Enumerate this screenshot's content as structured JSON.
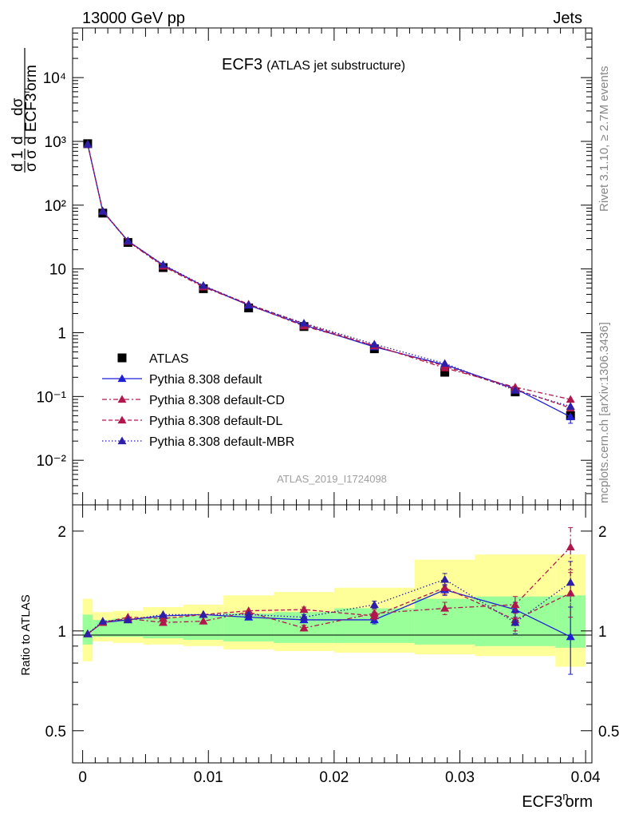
{
  "header": {
    "left": "13000 GeV pp",
    "right": "Jets"
  },
  "title": {
    "main": "ECF3",
    "sub": "(ATLAS jet substructure)"
  },
  "side_labels": {
    "rivet": "Rivet 3.1.10, ≥ 2.7M events",
    "mcplots": "mcplots.cern.ch [arXiv:1306.3436]"
  },
  "watermark": "ATLAS_2019_I1724098",
  "ratio_ylabel": "Ratio to ATLAS",
  "xlabel": "ECF3ⁿorm",
  "chart_data": [
    {
      "type": "line",
      "panel": "main",
      "ylabel": "1/σ dσ/d ECF3ⁿorm",
      "yscale": "log",
      "ylim": [
        0.002,
        60000
      ],
      "xlim": [
        -0.0008,
        0.0405
      ],
      "y_tick_labels": [
        "10⁻²",
        "10⁻¹",
        "1",
        "10",
        "10²",
        "10³",
        "10⁴"
      ],
      "y_tick_values": [
        0.01,
        0.1,
        1,
        10,
        100,
        1000,
        10000
      ],
      "x": [
        0.0004,
        0.0016,
        0.0036,
        0.0064,
        0.0096,
        0.0132,
        0.0176,
        0.0232,
        0.0288,
        0.0344,
        0.0388
      ],
      "series": [
        {
          "name": "ATLAS",
          "color": "#000000",
          "marker": "square",
          "dash": "",
          "y": [
            920,
            75,
            26,
            10.5,
            4.9,
            2.45,
            1.25,
            0.56,
            0.24,
            0.118,
            0.05
          ],
          "err": [
            0,
            0,
            0,
            0,
            0,
            0,
            0,
            0,
            0,
            0.01,
            0.012
          ]
        },
        {
          "name": "Pythia 8.308 default",
          "color": "#1f1fd6",
          "marker": "triangle",
          "dash": "",
          "y": [
            900,
            80,
            27.5,
            11.5,
            5.4,
            2.7,
            1.32,
            0.6,
            0.315,
            0.133,
            0.048
          ],
          "err": [
            0,
            0,
            0,
            0,
            0,
            0,
            0,
            0,
            0,
            0,
            0
          ]
        },
        {
          "name": "Pythia 8.308 default-CD",
          "color": "#b0174d",
          "marker": "triangle",
          "dash": "6 3 2 3",
          "y": [
            900,
            80,
            27,
            11,
            5.2,
            2.75,
            1.27,
            0.63,
            0.28,
            0.14,
            0.09
          ],
          "err": [
            0,
            0,
            0,
            0,
            0,
            0,
            0,
            0,
            0,
            0,
            0
          ]
        },
        {
          "name": "Pythia 8.308 default-DL",
          "color": "#b0174d",
          "marker": "triangle",
          "dash": "5 3",
          "y": [
            900,
            81,
            27.5,
            11.3,
            5.4,
            2.8,
            1.38,
            0.62,
            0.3,
            0.13,
            0.066
          ],
          "err": [
            0,
            0,
            0,
            0,
            0,
            0,
            0,
            0,
            0,
            0,
            0
          ]
        },
        {
          "name": "Pythia 8.308 default-MBR",
          "color": "#2d1fa8",
          "marker": "triangle",
          "dash": "1.5 2.5",
          "y": [
            900,
            80,
            27.5,
            11.7,
            5.5,
            2.75,
            1.41,
            0.66,
            0.33,
            0.125,
            0.07
          ],
          "err": [
            0,
            0,
            0,
            0,
            0,
            0,
            0,
            0,
            0,
            0,
            0
          ]
        }
      ]
    },
    {
      "type": "line",
      "panel": "ratio",
      "ylabel": "Ratio to ATLAS",
      "xlabel": "ECF3ⁿorm",
      "yscale": "log",
      "ylim": [
        0.4,
        2.4
      ],
      "xlim": [
        -0.0008,
        0.0405
      ],
      "y_tick_labels": [
        "0.5",
        "1",
        "2"
      ],
      "y_tick_values": [
        0.5,
        1,
        2
      ],
      "x_tick_labels": [
        "0",
        "0.01",
        "0.02",
        "0.03",
        "0.04"
      ],
      "x_tick_values": [
        0,
        0.01,
        0.02,
        0.03,
        0.04
      ],
      "bin_edges": [
        0,
        0.0008,
        0.0024,
        0.0048,
        0.008,
        0.0112,
        0.0152,
        0.02,
        0.0264,
        0.0312,
        0.0376,
        0.04
      ],
      "band_yellow": [
        [
          0.81,
          1.25
        ],
        [
          0.93,
          1.14
        ],
        [
          0.92,
          1.15
        ],
        [
          0.91,
          1.18
        ],
        [
          0.9,
          1.2
        ],
        [
          0.88,
          1.28
        ],
        [
          0.87,
          1.31
        ],
        [
          0.86,
          1.35
        ],
        [
          0.85,
          1.64
        ],
        [
          0.84,
          1.7
        ],
        [
          0.78,
          1.7
        ]
      ],
      "band_green": [
        [
          0.91,
          1.12
        ],
        [
          0.96,
          1.08
        ],
        [
          0.96,
          1.09
        ],
        [
          0.95,
          1.1
        ],
        [
          0.94,
          1.11
        ],
        [
          0.93,
          1.13
        ],
        [
          0.92,
          1.14
        ],
        [
          0.92,
          1.17
        ],
        [
          0.91,
          1.25
        ],
        [
          0.9,
          1.27
        ],
        [
          0.89,
          1.28
        ]
      ],
      "x": [
        0.0004,
        0.0016,
        0.0036,
        0.0064,
        0.0096,
        0.0132,
        0.0176,
        0.0232,
        0.0288,
        0.0344,
        0.0388
      ],
      "series": [
        {
          "name": "Pythia 8.308 default",
          "color": "#1f1fd6",
          "dash": "",
          "y": [
            0.98,
            1.06,
            1.08,
            1.11,
            1.12,
            1.1,
            1.08,
            1.08,
            1.33,
            1.16,
            0.96
          ],
          "err": [
            0,
            0,
            0,
            0,
            0,
            0,
            0,
            0.03,
            0.05,
            0.06,
            0.22
          ]
        },
        {
          "name": "Pythia 8.308 default-CD",
          "color": "#b0174d",
          "dash": "6 3 2 3",
          "y": [
            0.98,
            1.06,
            1.09,
            1.06,
            1.07,
            1.14,
            1.02,
            1.13,
            1.17,
            1.2,
            1.79
          ],
          "err": [
            0,
            0,
            0,
            0,
            0,
            0,
            0.02,
            0.03,
            0.05,
            0.07,
            0.26
          ]
        },
        {
          "name": "Pythia 8.308 default-DL",
          "color": "#b0174d",
          "dash": "5 3",
          "y": [
            0.98,
            1.06,
            1.1,
            1.09,
            1.12,
            1.15,
            1.16,
            1.11,
            1.35,
            1.08,
            1.3
          ],
          "err": [
            0,
            0,
            0,
            0,
            0,
            0,
            0.02,
            0.03,
            0.06,
            0.08,
            0.2
          ]
        },
        {
          "name": "Pythia 8.308 default-MBR",
          "color": "#2d1fa8",
          "dash": "1.5 2.5",
          "y": [
            0.98,
            1.07,
            1.08,
            1.12,
            1.12,
            1.12,
            1.1,
            1.2,
            1.43,
            1.06,
            1.4
          ],
          "err": [
            0,
            0,
            0,
            0,
            0,
            0,
            0.02,
            0.03,
            0.06,
            0.08,
            0.22
          ]
        }
      ]
    }
  ]
}
